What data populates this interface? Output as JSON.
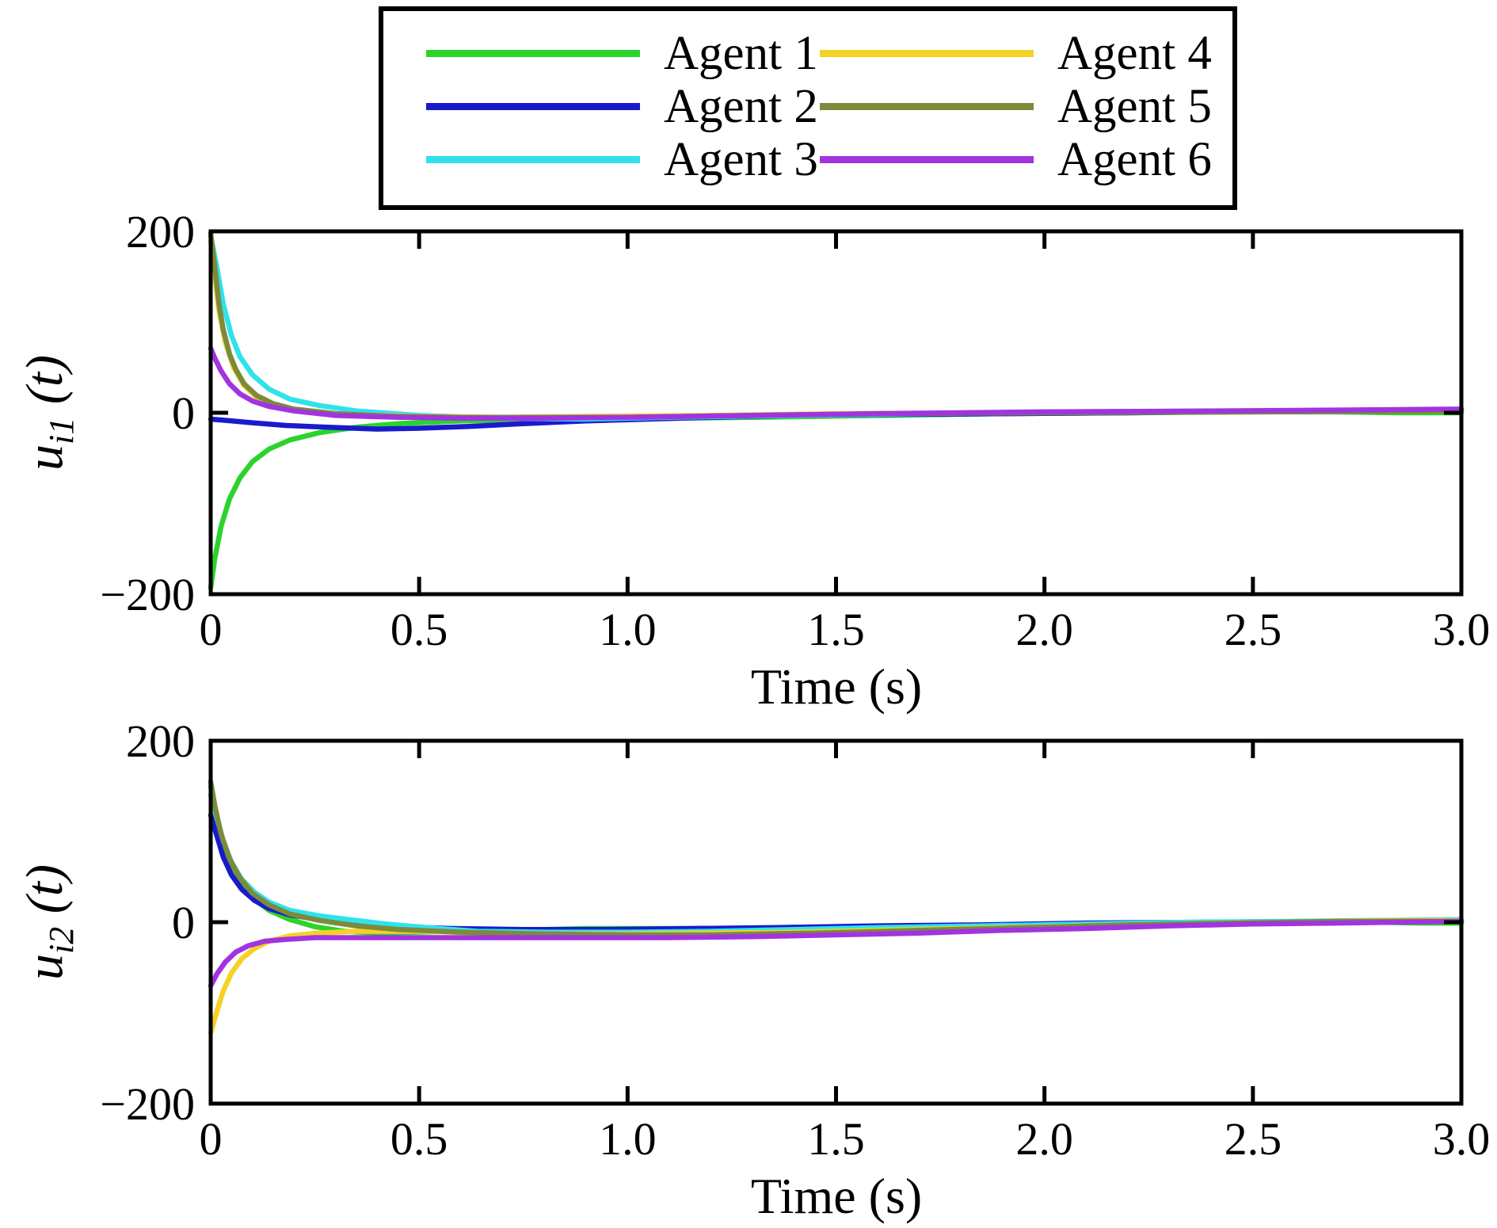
{
  "legend": {
    "position": "top-center",
    "items": [
      {
        "label": "Agent 1",
        "color": "#2bd42b"
      },
      {
        "label": "Agent 2",
        "color": "#1a1acd"
      },
      {
        "label": "Agent 3",
        "color": "#2fe2ec"
      },
      {
        "label": "Agent 4",
        "color": "#f4d226"
      },
      {
        "label": "Agent 5",
        "color": "#7c8b3a"
      },
      {
        "label": "Agent 6",
        "color": "#a134e0"
      }
    ]
  },
  "chart_data": [
    {
      "type": "line",
      "title": "",
      "xlabel": "Time (s)",
      "ylabel": "u_i1 (t)",
      "ylabel_base": "u",
      "ylabel_sub": "i1",
      "ylabel_rest": " (t)",
      "xlim": [
        0,
        3.0
      ],
      "ylim": [
        -200,
        200
      ],
      "xticks": [
        0,
        0.5,
        1.0,
        1.5,
        2.0,
        2.5,
        3.0
      ],
      "xtick_labels": [
        "0",
        "0.5",
        "1.0",
        "1.5",
        "2.0",
        "2.5",
        "3.0"
      ],
      "yticks": [
        -200,
        0,
        200
      ],
      "ytick_labels": [
        "−200",
        "0",
        "200"
      ],
      "grid": false,
      "series": [
        {
          "name": "Agent 1",
          "color": "#2bd42b",
          "x": [
            0,
            0.01,
            0.025,
            0.045,
            0.07,
            0.1,
            0.14,
            0.19,
            0.26,
            0.35,
            0.45,
            0.6,
            0.75,
            0.9,
            1.1,
            1.3,
            1.6,
            1.9,
            2.2,
            2.5,
            2.7,
            2.85,
            3.0
          ],
          "y": [
            -193,
            -160,
            -125,
            -95,
            -72,
            -54,
            -40,
            -30,
            -22,
            -16,
            -12,
            -9,
            -8,
            -7,
            -6,
            -5,
            -3,
            -1,
            0,
            1,
            1,
            0,
            0
          ]
        },
        {
          "name": "Agent 2",
          "color": "#1a1acd",
          "x": [
            0,
            0.05,
            0.1,
            0.18,
            0.28,
            0.4,
            0.5,
            0.62,
            0.75,
            0.9,
            1.05,
            1.2,
            1.4,
            1.6,
            1.9,
            2.2,
            2.6,
            3.0
          ],
          "y": [
            -7,
            -9,
            -11,
            -14,
            -16,
            -18,
            -17,
            -15,
            -12,
            -9,
            -7,
            -5,
            -3,
            -2,
            -1,
            0,
            2,
            3
          ]
        },
        {
          "name": "Agent 3",
          "color": "#2fe2ec",
          "x": [
            0,
            0.015,
            0.03,
            0.05,
            0.07,
            0.1,
            0.14,
            0.19,
            0.26,
            0.35,
            0.5,
            0.7,
            0.9,
            1.1,
            1.4,
            1.7,
            2.0,
            2.5,
            3.0
          ],
          "y": [
            195,
            160,
            120,
            85,
            62,
            42,
            26,
            15,
            8,
            2,
            -3,
            -6,
            -7,
            -5,
            -3,
            -1,
            1,
            2,
            3
          ]
        },
        {
          "name": "Agent 4",
          "color": "#f4d226",
          "x": [
            0,
            0.01,
            0.02,
            0.035,
            0.055,
            0.08,
            0.11,
            0.15,
            0.22,
            0.32,
            0.5,
            0.7,
            0.9,
            1.2,
            1.5,
            1.9,
            2.3,
            2.7,
            3.0
          ],
          "y": [
            190,
            150,
            112,
            78,
            50,
            30,
            17,
            8,
            2,
            -2,
            -4,
            -5,
            -4,
            -3,
            -1,
            0,
            1,
            2,
            2
          ]
        },
        {
          "name": "Agent 5",
          "color": "#7c8b3a",
          "x": [
            0,
            0.01,
            0.02,
            0.03,
            0.045,
            0.06,
            0.08,
            0.11,
            0.15,
            0.2,
            0.3,
            0.45,
            0.6,
            0.8,
            1.0,
            1.3,
            1.6,
            2.0,
            2.5,
            3.0
          ],
          "y": [
            198,
            160,
            120,
            92,
            65,
            48,
            32,
            19,
            10,
            4,
            -1,
            -4,
            -5,
            -5,
            -5,
            -3,
            -1,
            0,
            1,
            2
          ]
        },
        {
          "name": "Agent 6",
          "color": "#a134e0",
          "x": [
            0,
            0.01,
            0.025,
            0.045,
            0.07,
            0.1,
            0.14,
            0.2,
            0.3,
            0.45,
            0.6,
            0.8,
            1.0,
            1.3,
            1.6,
            2.0,
            2.4,
            2.7,
            3.0
          ],
          "y": [
            71,
            60,
            46,
            32,
            21,
            13,
            7,
            2,
            -3,
            -5,
            -6,
            -6,
            -5,
            -3,
            -1,
            1,
            2,
            3,
            4
          ]
        }
      ]
    },
    {
      "type": "line",
      "title": "",
      "xlabel": "Time (s)",
      "ylabel": "u_i2 (t)",
      "ylabel_base": "u",
      "ylabel_sub": "i2",
      "ylabel_rest": " (t)",
      "xlim": [
        0,
        3.0
      ],
      "ylim": [
        -200,
        200
      ],
      "xticks": [
        0,
        0.5,
        1.0,
        1.5,
        2.0,
        2.5,
        3.0
      ],
      "xtick_labels": [
        "0",
        "0.5",
        "1.0",
        "1.5",
        "2.0",
        "2.5",
        "3.0"
      ],
      "yticks": [
        -200,
        0,
        200
      ],
      "ytick_labels": [
        "−200",
        "0",
        "200"
      ],
      "grid": false,
      "series": [
        {
          "name": "Agent 1",
          "color": "#2bd42b",
          "x": [
            0,
            0.01,
            0.025,
            0.045,
            0.07,
            0.1,
            0.14,
            0.19,
            0.25,
            0.32,
            0.4,
            0.5,
            0.6,
            0.7,
            0.8,
            0.9,
            1.05,
            1.2,
            1.35,
            1.5,
            1.7,
            1.9,
            2.1,
            2.3,
            2.5,
            2.65,
            2.8,
            2.9,
            3.0
          ],
          "y": [
            150,
            122,
            92,
            65,
            44,
            27,
            13,
            3,
            -5,
            -10,
            -12,
            -11,
            -10,
            -8,
            -8,
            -7,
            -7,
            -7,
            -6,
            -5,
            -4,
            -3,
            -2,
            -1,
            0,
            1,
            0,
            -1,
            -1
          ]
        },
        {
          "name": "Agent 2",
          "color": "#1a1acd",
          "x": [
            0,
            0.015,
            0.03,
            0.05,
            0.075,
            0.105,
            0.14,
            0.19,
            0.26,
            0.35,
            0.45,
            0.58,
            0.75,
            0.95,
            1.15,
            1.35,
            1.6,
            1.85,
            2.1,
            2.4,
            2.7,
            3.0
          ],
          "y": [
            118,
            95,
            72,
            52,
            36,
            24,
            15,
            8,
            3,
            -2,
            -5,
            -7,
            -8,
            -8,
            -7,
            -6,
            -4,
            -3,
            -1,
            0,
            1,
            2
          ]
        },
        {
          "name": "Agent 3",
          "color": "#2fe2ec",
          "x": [
            0,
            0.015,
            0.03,
            0.05,
            0.075,
            0.105,
            0.14,
            0.19,
            0.26,
            0.33,
            0.42,
            0.52,
            0.64,
            0.8,
            1.0,
            1.2,
            1.4,
            1.6,
            1.85,
            2.1,
            2.35,
            2.6,
            2.8,
            3.0
          ],
          "y": [
            140,
            115,
            90,
            66,
            47,
            33,
            22,
            13,
            7,
            3,
            -2,
            -6,
            -10,
            -11,
            -11,
            -10,
            -8,
            -6,
            -4,
            -2,
            0,
            1,
            2,
            3
          ]
        },
        {
          "name": "Agent 4",
          "color": "#f4d226",
          "x": [
            0,
            0.015,
            0.03,
            0.05,
            0.075,
            0.105,
            0.14,
            0.19,
            0.26,
            0.35,
            0.5,
            0.65,
            0.8,
            1.0,
            1.2,
            1.4,
            1.6,
            1.8,
            2.0,
            2.2,
            2.45,
            2.7,
            2.85,
            3.0
          ],
          "y": [
            -122,
            -98,
            -76,
            -56,
            -40,
            -29,
            -21,
            -15,
            -12,
            -10,
            -10,
            -12,
            -13,
            -13,
            -12,
            -11,
            -9,
            -7,
            -5,
            -3,
            -1,
            1,
            2,
            2
          ]
        },
        {
          "name": "Agent 5",
          "color": "#7c8b3a",
          "x": [
            0,
            0.01,
            0.025,
            0.045,
            0.07,
            0.1,
            0.14,
            0.19,
            0.26,
            0.35,
            0.45,
            0.6,
            0.8,
            1.0,
            1.2,
            1.45,
            1.7,
            1.95,
            2.2,
            2.45,
            2.7,
            3.0
          ],
          "y": [
            155,
            128,
            97,
            70,
            49,
            32,
            19,
            9,
            2,
            -4,
            -8,
            -11,
            -13,
            -14,
            -14,
            -12,
            -9,
            -6,
            -3,
            -1,
            1,
            1
          ]
        },
        {
          "name": "Agent 6",
          "color": "#a134e0",
          "x": [
            0,
            0.015,
            0.035,
            0.06,
            0.09,
            0.13,
            0.18,
            0.25,
            0.35,
            0.5,
            0.7,
            0.9,
            1.1,
            1.3,
            1.5,
            1.7,
            1.9,
            2.1,
            2.3,
            2.5,
            2.7,
            2.85,
            3.0
          ],
          "y": [
            -70,
            -57,
            -44,
            -33,
            -26,
            -21,
            -19,
            -17,
            -17,
            -17,
            -17,
            -17,
            -17,
            -16,
            -14,
            -12,
            -9,
            -7,
            -4,
            -2,
            -1,
            0,
            1
          ]
        }
      ]
    }
  ]
}
